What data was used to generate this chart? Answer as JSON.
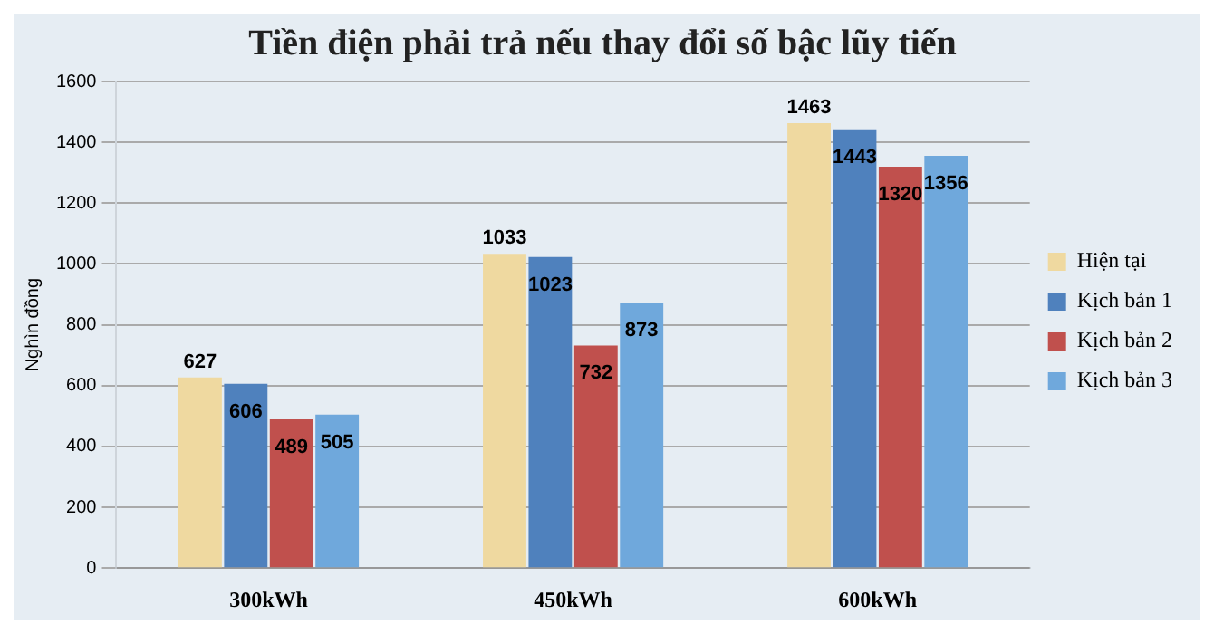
{
  "chart_data": {
    "type": "bar",
    "title": "Tiền điện phải trả nếu thay đổi số bậc lũy tiến",
    "ylabel": "Nghìn đồng",
    "categories": [
      "300kWh",
      "450kWh",
      "600kWh"
    ],
    "series": [
      {
        "name": "Hiện tại",
        "color": "#efd9a0",
        "values": [
          627,
          1033,
          1463
        ]
      },
      {
        "name": "Kịch bản 1",
        "color": "#4f81bd",
        "values": [
          606,
          1023,
          1443
        ]
      },
      {
        "name": "Kịch bản 2",
        "color": "#c0504d",
        "values": [
          489,
          732,
          1320
        ]
      },
      {
        "name": "Kịch bản 3",
        "color": "#6fa8dc",
        "values": [
          505,
          873,
          1356
        ]
      }
    ],
    "ylim": [
      0,
      1600
    ],
    "yticks": [
      0,
      200,
      400,
      600,
      800,
      1000,
      1200,
      1400,
      1600
    ],
    "grid": "y",
    "legend": "right",
    "data_labels": true
  }
}
